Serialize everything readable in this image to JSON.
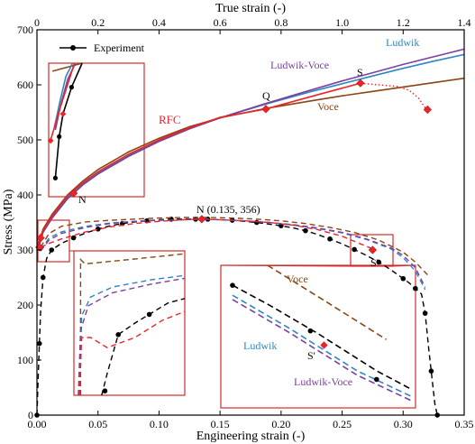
{
  "chart_data": {
    "type": "line",
    "xlabel": "Engineering strain (-)",
    "x2label": "True strain (-)",
    "ylabel": "Stress (MPa)",
    "xlim": [
      0,
      0.35
    ],
    "x2lim": [
      0,
      1.4
    ],
    "ylim": [
      0,
      700
    ],
    "xticks": [
      "0.00",
      "0.05",
      "0.10",
      "0.15",
      "0.20",
      "0.25",
      "0.30",
      "0.35"
    ],
    "x2ticks": [
      "0",
      "0.2",
      "0.4",
      "0.6",
      "0.8",
      "1.0",
      "1.2",
      "1.4"
    ],
    "yticks": [
      "0",
      "100",
      "200",
      "300",
      "400",
      "500",
      "600",
      "700"
    ],
    "grid": false,
    "legend": {
      "position": "top-left",
      "entries": [
        "Experiment"
      ]
    },
    "series": [
      {
        "name": "Experiment",
        "axis": "engineering",
        "color": "#000000",
        "style": "dashed-markers",
        "x": [
          0.0,
          0.001,
          0.002,
          0.003,
          0.005,
          0.008,
          0.012,
          0.02,
          0.03,
          0.04,
          0.05,
          0.06,
          0.07,
          0.08,
          0.09,
          0.1,
          0.11,
          0.12,
          0.13,
          0.135,
          0.14,
          0.15,
          0.16,
          0.17,
          0.18,
          0.19,
          0.2,
          0.21,
          0.22,
          0.23,
          0.24,
          0.25,
          0.26,
          0.27,
          0.28,
          0.29,
          0.3,
          0.305,
          0.31,
          0.315,
          0.318,
          0.321,
          0.323,
          0.326,
          0.328
        ],
        "y": [
          0,
          70,
          130,
          190,
          250,
          285,
          300,
          312,
          322,
          331,
          338,
          344,
          348,
          351,
          353,
          355,
          356,
          356,
          356,
          356,
          356,
          355,
          354,
          352,
          350,
          347,
          344,
          340,
          335,
          328,
          320,
          311,
          301,
          290,
          278,
          264,
          248,
          240,
          230,
          220,
          185,
          120,
          80,
          20,
          0
        ]
      },
      {
        "name": "Ludwik",
        "axis": "engineering",
        "color": "#2f86c4",
        "style": "dashed",
        "x": [
          0.003,
          0.01,
          0.02,
          0.04,
          0.06,
          0.08,
          0.1,
          0.12,
          0.135,
          0.15,
          0.17,
          0.19,
          0.21,
          0.23,
          0.25,
          0.27,
          0.29,
          0.3,
          0.31,
          0.318
        ],
        "y": [
          300,
          322,
          333,
          343,
          349,
          352,
          354,
          355,
          356,
          355,
          353,
          350,
          345,
          339,
          331,
          319,
          302,
          286,
          262,
          228
        ]
      },
      {
        "name": "Ludwik-Voce",
        "axis": "engineering",
        "color": "#7b3fa0",
        "style": "dashed",
        "x": [
          0.003,
          0.01,
          0.02,
          0.04,
          0.06,
          0.08,
          0.1,
          0.12,
          0.135,
          0.15,
          0.17,
          0.19,
          0.21,
          0.23,
          0.25,
          0.27,
          0.29,
          0.3,
          0.31,
          0.318
        ],
        "y": [
          298,
          318,
          330,
          341,
          348,
          352,
          354,
          355,
          356,
          355,
          353,
          350,
          346,
          340,
          332,
          320,
          304,
          290,
          268,
          232
        ]
      },
      {
        "name": "Voce",
        "axis": "engineering",
        "color": "#8b4513",
        "style": "dashed",
        "x": [
          0.003,
          0.01,
          0.02,
          0.04,
          0.06,
          0.08,
          0.1,
          0.12,
          0.14,
          0.16,
          0.18,
          0.2,
          0.22,
          0.24,
          0.26,
          0.28,
          0.3,
          0.31,
          0.32
        ],
        "y": [
          305,
          330,
          343,
          351,
          354,
          356,
          358,
          359,
          359,
          358,
          356,
          353,
          348,
          341,
          332,
          318,
          296,
          278,
          255
        ]
      },
      {
        "name": "RFC",
        "axis": "engineering",
        "color": "#e8262a",
        "style": "dashed",
        "x": [
          0.003,
          0.01,
          0.02,
          0.04,
          0.06,
          0.08,
          0.1,
          0.12,
          0.135,
          0.15,
          0.17,
          0.19,
          0.21,
          0.23,
          0.25,
          0.275
        ],
        "y": [
          305,
          312,
          320,
          333,
          342,
          348,
          352,
          355,
          356,
          355,
          353,
          350,
          345,
          337,
          325,
          302
        ]
      },
      {
        "name": "Ludwik",
        "axis": "true",
        "color": "#2f86c4",
        "style": "solid",
        "x": [
          0.002,
          0.02,
          0.05,
          0.1,
          0.15,
          0.2,
          0.3,
          0.4,
          0.5,
          0.6,
          0.75,
          0.9,
          1.0,
          1.1,
          1.2,
          1.3,
          1.4
        ],
        "y": [
          300,
          335,
          360,
          395,
          420,
          440,
          472,
          498,
          521,
          540,
          565,
          588,
          602,
          616,
          630,
          643,
          655
        ]
      },
      {
        "name": "Ludwik-Voce",
        "axis": "true",
        "color": "#7b3fa0",
        "style": "solid",
        "x": [
          0.002,
          0.02,
          0.05,
          0.1,
          0.15,
          0.2,
          0.3,
          0.4,
          0.5,
          0.6,
          0.75,
          0.9,
          1.0,
          1.1,
          1.2,
          1.3,
          1.4
        ],
        "y": [
          298,
          332,
          358,
          393,
          418,
          438,
          470,
          497,
          520,
          540,
          566,
          591,
          607,
          622,
          637,
          651,
          665
        ]
      },
      {
        "name": "Voce",
        "axis": "true",
        "color": "#8b4513",
        "style": "solid",
        "x": [
          0.002,
          0.02,
          0.05,
          0.1,
          0.15,
          0.2,
          0.3,
          0.4,
          0.5,
          0.6,
          0.75,
          0.9,
          1.0,
          1.1,
          1.2,
          1.3,
          1.4
        ],
        "y": [
          305,
          338,
          365,
          400,
          425,
          446,
          478,
          503,
          524,
          540,
          557,
          571,
          580,
          588,
          596,
          604,
          612
        ]
      },
      {
        "name": "RFC",
        "axis": "true",
        "color": "#e8262a",
        "style": "solid",
        "x": [
          0.002,
          0.02,
          0.05,
          0.1,
          0.15,
          0.2,
          0.3,
          0.4,
          0.5,
          0.6,
          0.75,
          0.9,
          1.0,
          1.06
        ],
        "y": [
          305,
          335,
          362,
          398,
          422,
          442,
          474,
          500,
          522,
          541,
          556,
          579,
          594,
          603
        ]
      },
      {
        "name": "RFC-post",
        "axis": "true",
        "color": "#e8262a",
        "style": "dotted",
        "x": [
          1.06,
          1.12,
          1.18,
          1.22,
          1.25,
          1.27,
          1.28
        ],
        "y": [
          603,
          600,
          597,
          590,
          576,
          560,
          555
        ]
      }
    ],
    "markers": [
      {
        "label": "Q",
        "axis": "true",
        "x": 0.75,
        "y": 556
      },
      {
        "label": "S",
        "axis": "true",
        "x": 1.06,
        "y": 603
      },
      {
        "label": "",
        "axis": "true",
        "x": 1.28,
        "y": 555
      },
      {
        "label": "N",
        "axis": "true",
        "x": 0.12,
        "y": 403
      },
      {
        "label": "",
        "axis": "engineering",
        "x": 0.002,
        "y": 305
      },
      {
        "label": "",
        "axis": "engineering",
        "x": 0.003,
        "y": 322
      },
      {
        "label": "N (0.135, 356)",
        "axis": "engineering",
        "x": 0.135,
        "y": 356
      },
      {
        "label": "S'",
        "axis": "engineering",
        "x": 0.275,
        "y": 300
      }
    ],
    "annotations": [
      "Ludwik",
      "Ludwik-Voce",
      "Voce",
      "RFC",
      "S",
      "Q",
      "N",
      "N (0.135, 356)",
      "S'"
    ],
    "inset_annotations": [
      "Voce",
      "Ludwik",
      "S'",
      "Ludwik-Voce"
    ],
    "colors": {
      "ludwik": "#2f86c4",
      "ludwik_voce": "#7b3fa0",
      "voce": "#8b4513",
      "rfc": "#e8262a",
      "experiment": "#000000",
      "inset_frame": "#d42a2a"
    }
  }
}
